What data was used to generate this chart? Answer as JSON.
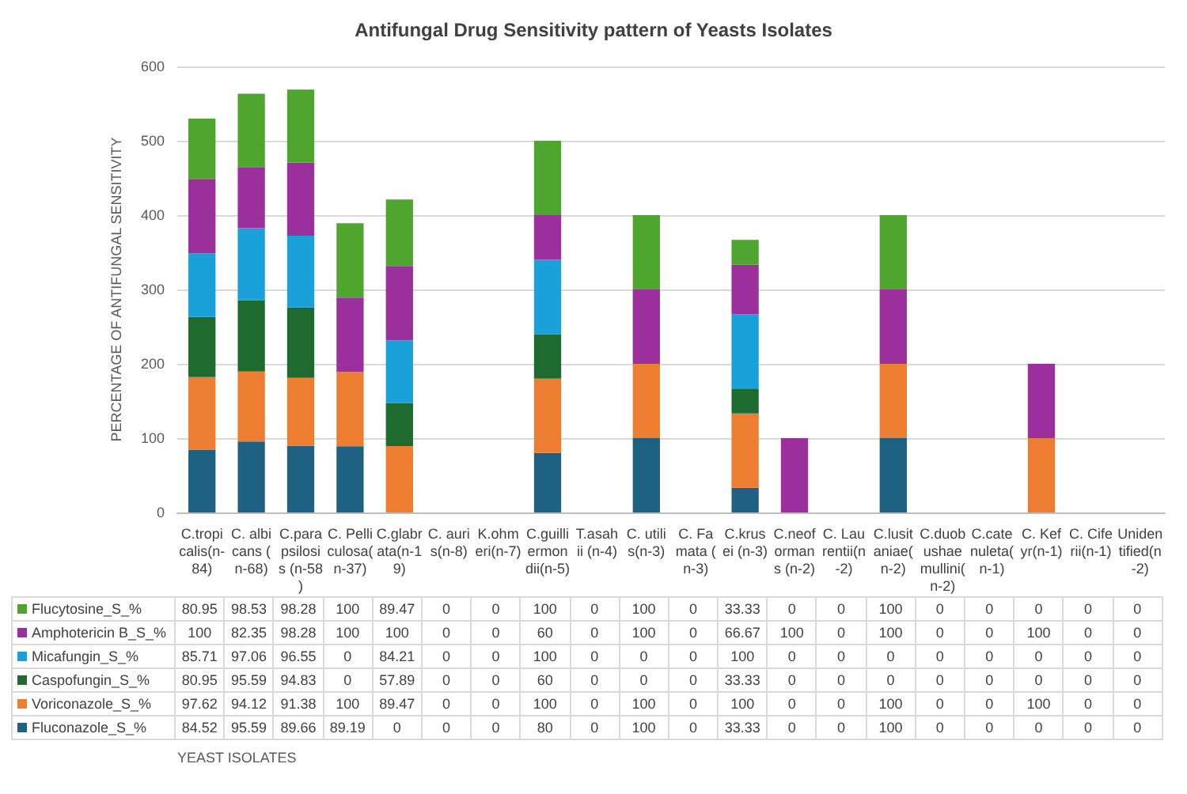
{
  "chart_data": {
    "type": "bar",
    "stacked": true,
    "title": "Antifungal Drug Sensitivity pattern of Yeasts Isolates",
    "annotations": [
      "YEAST ISOLATES"
    ],
    "ylabel": "PERCENTAGE OF ANTIFUNGAL SENSITIVITY",
    "categories": [
      "C.tropicalis(n-84)",
      "C. albicans (n-68)",
      "C.parapsilosis (n-58)",
      "C. Pelliculosa(n-37)",
      "C.glabrata(n-19)",
      "C. auris(n-8)",
      "K.ohmeri(n-7)",
      "C.guilliermondii(n-5)",
      "T.asahii (n-4)",
      "C. utilis(n-3)",
      "C. Famata (n-3)",
      "C.krusei (n-3)",
      "C.neoformans (n-2)",
      "C. Laurentii(n-2)",
      "C.lusitaniae(n-2)",
      "C.duobushaemullini(n-2)",
      "C.catenuleta(n-1)",
      "C. Kefyr(n-1)",
      "C. Ciferii(n-1)",
      "Unidentified(n-2)"
    ],
    "series": [
      {
        "name": "Fluconazole_S_%",
        "color": "#1f6183",
        "values": [
          84.52,
          95.59,
          89.66,
          89.19,
          0,
          0,
          0,
          80,
          0,
          100,
          0,
          33.33,
          0,
          0,
          100,
          0,
          0,
          0,
          0,
          0
        ]
      },
      {
        "name": "Voriconazole_S_%",
        "color": "#ed7d31",
        "values": [
          97.62,
          94.12,
          91.38,
          100,
          89.47,
          0,
          0,
          100,
          0,
          100,
          0,
          100,
          0,
          0,
          100,
          0,
          0,
          100,
          0,
          0
        ]
      },
      {
        "name": "Caspofungin_S_%",
        "color": "#1e6b30",
        "values": [
          80.95,
          95.59,
          94.83,
          0,
          57.89,
          0,
          0,
          60,
          0,
          0,
          0,
          33.33,
          0,
          0,
          0,
          0,
          0,
          0,
          0,
          0
        ]
      },
      {
        "name": "Micafungin_S_%",
        "color": "#1ba1d9",
        "values": [
          85.71,
          97.06,
          96.55,
          0,
          84.21,
          0,
          0,
          100,
          0,
          0,
          0,
          100,
          0,
          0,
          0,
          0,
          0,
          0,
          0,
          0
        ]
      },
      {
        "name": "Amphotericin B_S_%",
        "color": "#9b2f9b",
        "values": [
          100,
          82.35,
          98.28,
          100,
          100,
          0,
          0,
          60,
          0,
          100,
          0,
          66.67,
          100,
          0,
          100,
          0,
          0,
          100,
          0,
          0
        ]
      },
      {
        "name": "Flucytosine_S_%",
        "color": "#4fa62f",
        "values": [
          80.95,
          98.53,
          98.28,
          100,
          89.47,
          0,
          0,
          100,
          0,
          100,
          0,
          33.33,
          0,
          0,
          100,
          0,
          0,
          0,
          0,
          0
        ]
      }
    ],
    "ylim": [
      0,
      600
    ],
    "yticks": [
      0,
      100,
      200,
      300,
      400,
      500,
      600
    ],
    "grid": "y",
    "legend": "bottom",
    "data_labels": true
  }
}
